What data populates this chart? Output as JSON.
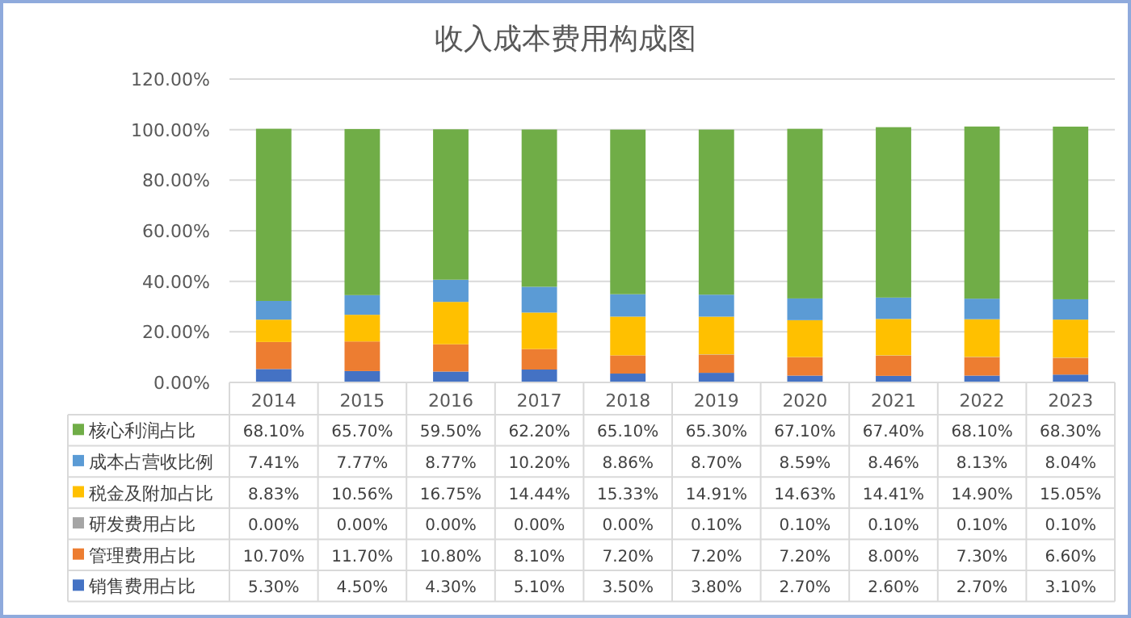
{
  "chart_data": {
    "type": "bar",
    "title": "收入成本费用构成图",
    "stacked": true,
    "grid": "y",
    "legend": "bottom",
    "categories": [
      "2014",
      "2015",
      "2016",
      "2017",
      "2018",
      "2019",
      "2020",
      "2021",
      "2022",
      "2023"
    ],
    "ylim": [
      0,
      120
    ],
    "yticks": [
      {
        "value": 0,
        "label": "0.00%"
      },
      {
        "value": 20,
        "label": "20.00%"
      },
      {
        "value": 40,
        "label": "40.00%"
      },
      {
        "value": 60,
        "label": "60.00%"
      },
      {
        "value": 80,
        "label": "80.00%"
      },
      {
        "value": 100,
        "label": "100.00%"
      },
      {
        "value": 120,
        "label": "120.00%"
      }
    ],
    "series": [
      {
        "name": "销售费用占比",
        "color": "#4472c4",
        "values": [
          5.3,
          4.5,
          4.3,
          5.1,
          3.5,
          3.8,
          2.7,
          2.6,
          2.7,
          3.1
        ],
        "value_labels": [
          "5.30%",
          "4.50%",
          "4.30%",
          "5.10%",
          "3.50%",
          "3.80%",
          "2.70%",
          "2.60%",
          "2.70%",
          "3.10%"
        ]
      },
      {
        "name": "管理费用占比",
        "color": "#ed7d31",
        "values": [
          10.7,
          11.7,
          10.8,
          8.1,
          7.2,
          7.2,
          7.2,
          8.0,
          7.3,
          6.6
        ],
        "value_labels": [
          "10.70%",
          "11.70%",
          "10.80%",
          "8.10%",
          "7.20%",
          "7.20%",
          "7.20%",
          "8.00%",
          "7.30%",
          "6.60%"
        ]
      },
      {
        "name": "研发费用占比",
        "color": "#a5a5a5",
        "values": [
          0,
          0,
          0,
          0,
          0,
          0.1,
          0.1,
          0.1,
          0.1,
          0.1
        ],
        "value_labels": [
          "0.00%",
          "0.00%",
          "0.00%",
          "0.00%",
          "0.00%",
          "0.10%",
          "0.10%",
          "0.10%",
          "0.10%",
          "0.10%"
        ]
      },
      {
        "name": "税金及附加占比",
        "color": "#ffc000",
        "values": [
          8.83,
          10.56,
          16.75,
          14.44,
          15.33,
          14.91,
          14.63,
          14.41,
          14.9,
          15.05
        ],
        "value_labels": [
          "8.83%",
          "10.56%",
          "16.75%",
          "14.44%",
          "15.33%",
          "14.91%",
          "14.63%",
          "14.41%",
          "14.90%",
          "15.05%"
        ]
      },
      {
        "name": "成本占营收比例",
        "color": "#5b9bd5",
        "values": [
          7.41,
          7.77,
          8.77,
          10.2,
          8.86,
          8.7,
          8.59,
          8.46,
          8.13,
          8.04
        ],
        "value_labels": [
          "7.41%",
          "7.77%",
          "8.77%",
          "10.20%",
          "8.86%",
          "8.70%",
          "8.59%",
          "8.46%",
          "8.13%",
          "8.04%"
        ]
      },
      {
        "name": "核心利润占比",
        "color": "#70ad47",
        "values": [
          68.1,
          65.7,
          59.5,
          62.2,
          65.1,
          65.3,
          67.1,
          67.4,
          68.1,
          68.3
        ],
        "value_labels": [
          "68.10%",
          "65.70%",
          "59.50%",
          "62.20%",
          "65.10%",
          "65.30%",
          "67.10%",
          "67.40%",
          "68.10%",
          "68.30%"
        ]
      }
    ]
  }
}
